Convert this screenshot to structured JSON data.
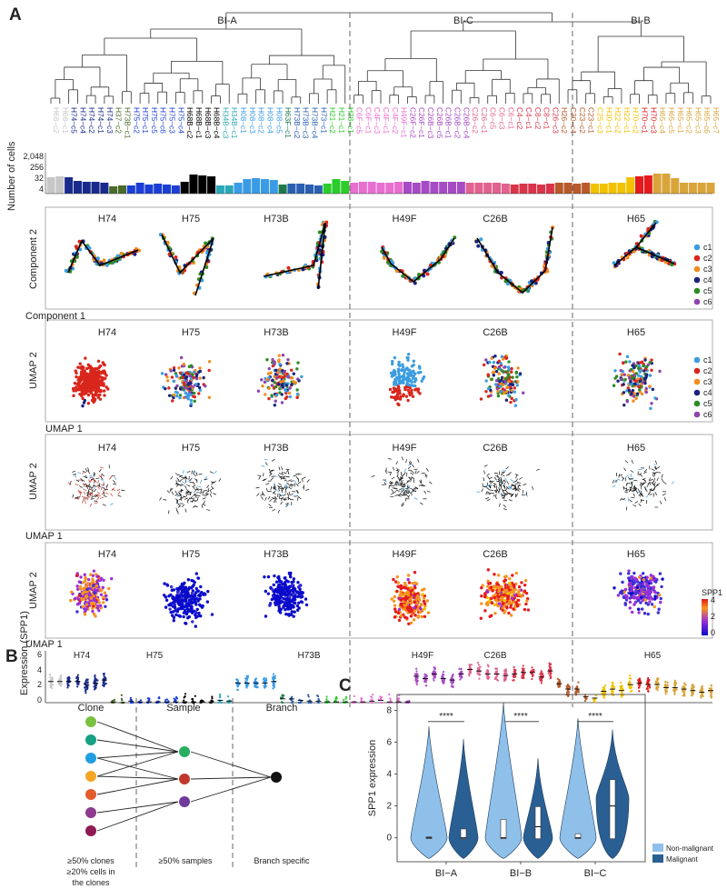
{
  "panels": {
    "a": "A",
    "b": "B",
    "c": "C"
  },
  "branches": [
    "BI-A",
    "BI-C",
    "BI-B"
  ],
  "samples": [
    "H74",
    "H75",
    "H73B",
    "H49F",
    "C26B",
    "H65"
  ],
  "axes": {
    "cells_ylabel": "Number of cells",
    "cells_ticks": [
      "2,048",
      "256",
      "32",
      "4"
    ],
    "comp_y": "Component 2",
    "comp_x": "Component 1",
    "umap_y": "UMAP 2",
    "umap_x": "UMAP 1",
    "expr_y": "Expression (SPP1)",
    "expr_ticks": [
      "6",
      "4",
      "2",
      "0"
    ]
  },
  "legend_clusters": [
    {
      "label": "c1",
      "color": "#3b9de0"
    },
    {
      "label": "c2",
      "color": "#d9261c"
    },
    {
      "label": "c3",
      "color": "#f28c1e"
    },
    {
      "label": "c4",
      "color": "#1a237e"
    },
    {
      "label": "c5",
      "color": "#2e8b22"
    },
    {
      "label": "c6",
      "color": "#8e44ad"
    }
  ],
  "spp1_legend": {
    "title": "SPP1",
    "ticks": [
      "4",
      "2",
      "0"
    ]
  },
  "leaf_labels": [
    "H68−c2",
    "H68−c1",
    "H74−c5",
    "H74−c4",
    "H74−c2",
    "H74−c1",
    "H74−c3",
    "H37−c2",
    "H73B−c1",
    "H75−c2",
    "H75−c1",
    "H75−c5",
    "H75−c6",
    "H75−c3",
    "H75−c4",
    "H68B−c2",
    "H68B−c1",
    "H68B−c3",
    "H68B−c4",
    "H34B−c3",
    "H34B−c1",
    "H08−c1",
    "H08−c3",
    "H08−c2",
    "H08−c4",
    "H08−c5",
    "H63F−c1",
    "H73B−c2",
    "H73B−c3",
    "H73B−c4",
    "H73−c1",
    "H21−c2",
    "H21−c1",
    "H28−c1",
    "C6F−c5",
    "C6F−c1",
    "C4F−c3",
    "C4F−c1",
    "C4F−c2",
    "H49F−c1",
    "C26F−c2",
    "C26F−c1",
    "C26B−c3",
    "C26B−c5",
    "C26B−c1",
    "C26B−c2",
    "C26B−c4",
    "C26−c2",
    "C26−c1",
    "C6−c5",
    "C6−c3",
    "C6−c1",
    "C4−c2",
    "C4−c1",
    "C8−c2",
    "C8−c1",
    "C26−c3",
    "H26−c2",
    "C20−c4",
    "C23−c2",
    "C23−c1",
    "C25−c3",
    "H30−c1",
    "H22−c2",
    "H22−c1",
    "H70−c2",
    "H70−c1",
    "H70−c3",
    "H65−c4",
    "H65−c5",
    "H65−c1",
    "H65−c2",
    "H65−c3",
    "H65−c6",
    "H65−c7"
  ],
  "panel_b": {
    "headers": [
      "Clone",
      "Sample",
      "Branch"
    ],
    "captions": [
      "≥50% clones",
      "≥20% cells in",
      "the clones",
      "≥50% samples",
      "Branch specific"
    ],
    "clone_colors": [
      "#7ac143",
      "#16a085",
      "#1e9fe0",
      "#f5a623",
      "#e15b2b",
      "#8e3a8e",
      "#8e1a55"
    ],
    "sample_colors": [
      "#27ae60",
      "#c0392b",
      "#6f3a9b"
    ],
    "branch_color": "#111111"
  },
  "chart_data": {
    "type": "violin",
    "categories": [
      "BI−A",
      "BI−B",
      "BI−C"
    ],
    "ylabel": "SPP1 expression",
    "ylim": [
      -1.5,
      9
    ],
    "yticks": [
      0,
      2,
      4,
      6,
      8
    ],
    "significance": [
      "****",
      "****",
      "****"
    ],
    "series": [
      {
        "name": "Non-malignant",
        "color": "#8fc0ea",
        "max": [
          7.0,
          8.5,
          7.5
        ],
        "q1": [
          0,
          0,
          0
        ],
        "median": [
          0,
          0,
          0
        ],
        "q3": [
          0,
          1.1,
          0.2
        ]
      },
      {
        "name": "Malignant",
        "color": "#2a5f93",
        "max": [
          6.2,
          5.0,
          6.8
        ],
        "q1": [
          0,
          0,
          0
        ],
        "median": [
          0,
          0.7,
          2.0
        ],
        "q3": [
          0.5,
          1.9,
          3.6
        ]
      }
    ],
    "legend": "right"
  }
}
